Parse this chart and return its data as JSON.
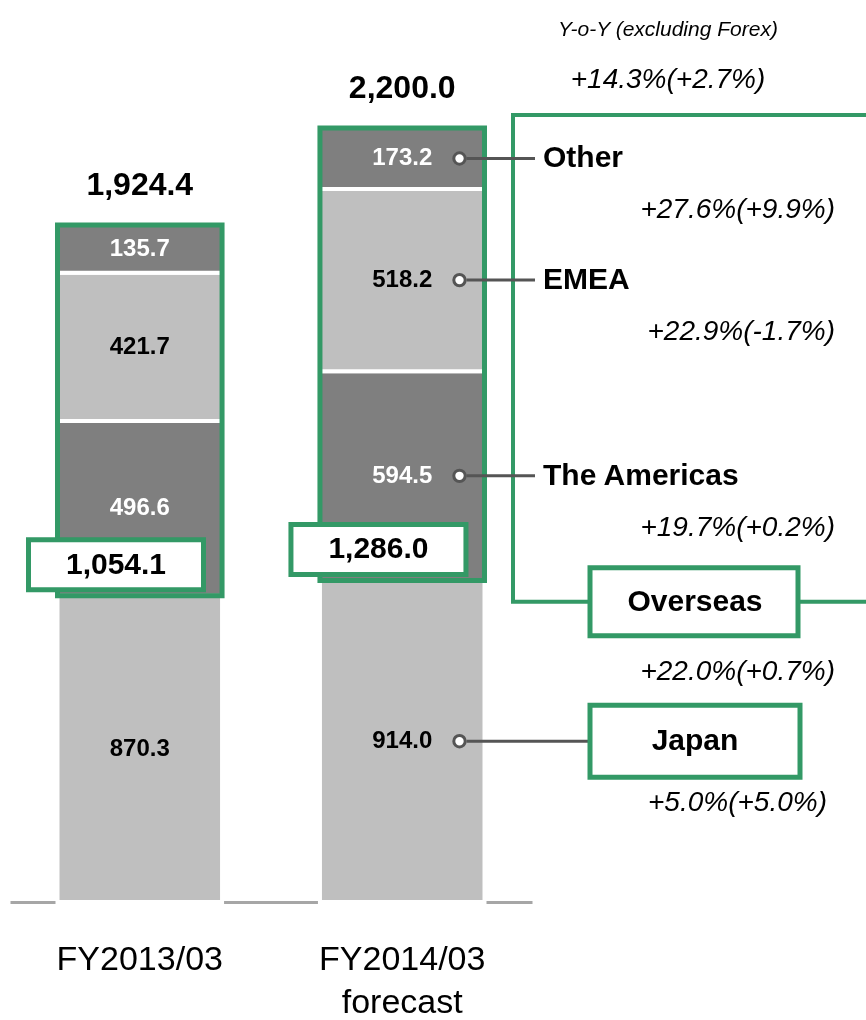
{
  "chart_data": {
    "type": "bar",
    "stacked": true,
    "categories": [
      "FY2013/03",
      "FY2014/03 forecast"
    ],
    "series": [
      {
        "name": "Japan",
        "color": "#bfbfbf",
        "values": [
          870.3,
          914.0
        ],
        "value_labels": [
          "870.3",
          "914.0"
        ]
      },
      {
        "name": "The Americas",
        "color": "#7f7f7f",
        "values": [
          496.6,
          594.5
        ],
        "value_labels": [
          "496.6",
          "594.5"
        ]
      },
      {
        "name": "EMEA",
        "color": "#bfbfbf",
        "values": [
          421.7,
          518.2
        ],
        "value_labels": [
          "421.7",
          "518.2"
        ]
      },
      {
        "name": "Other",
        "color": "#7f7f7f",
        "values": [
          135.7,
          173.2
        ],
        "value_labels": [
          "135.7",
          "173.2"
        ]
      }
    ],
    "totals": [
      "1,924.4",
      "2,200.0"
    ],
    "annotations": [
      "Y-o-Y (excluding Forex)",
      "+14.3%(+2.7%)",
      "+27.6%(+9.9%)",
      "+22.9%(-1.7%)",
      "+19.7%(+0.2%)",
      "Overseas",
      "+22.0%(+0.7%)",
      "+5.0%(+5.0%)",
      "1,054.1",
      "1,286.0"
    ]
  }
}
